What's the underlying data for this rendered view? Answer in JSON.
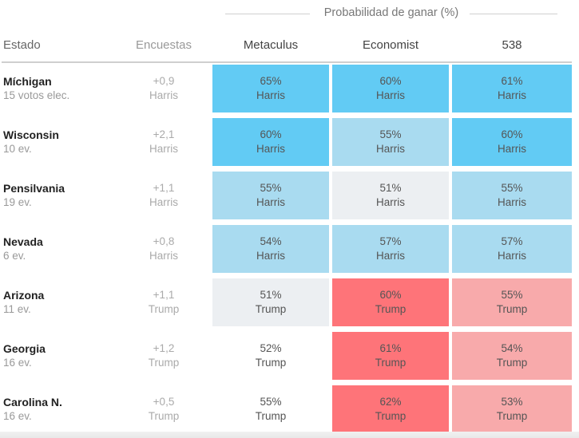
{
  "chart_data": {
    "type": "table",
    "title": "Probabilidad de ganar (%)",
    "columns": [
      "Estado",
      "Encuestas",
      "Metaculus",
      "Economist",
      "538"
    ],
    "sources": [
      "Metaculus",
      "Economist",
      "538"
    ],
    "rows": [
      {
        "state": "Míchigan",
        "ev": "15 votos elec.",
        "poll": "+0,9",
        "poll_leader": "Harris",
        "cells": [
          {
            "pct": 65,
            "label": "65%",
            "leader": "Harris"
          },
          {
            "pct": 60,
            "label": "60%",
            "leader": "Harris"
          },
          {
            "pct": 61,
            "label": "61%",
            "leader": "Harris"
          }
        ]
      },
      {
        "state": "Wisconsin",
        "ev": "10 ev.",
        "poll": "+2,1",
        "poll_leader": "Harris",
        "cells": [
          {
            "pct": 60,
            "label": "60%",
            "leader": "Harris"
          },
          {
            "pct": 55,
            "label": "55%",
            "leader": "Harris"
          },
          {
            "pct": 60,
            "label": "60%",
            "leader": "Harris"
          }
        ]
      },
      {
        "state": "Pensilvania",
        "ev": "19 ev.",
        "poll": "+1,1",
        "poll_leader": "Harris",
        "cells": [
          {
            "pct": 55,
            "label": "55%",
            "leader": "Harris"
          },
          {
            "pct": 51,
            "label": "51%",
            "leader": "Harris"
          },
          {
            "pct": 55,
            "label": "55%",
            "leader": "Harris"
          }
        ]
      },
      {
        "state": "Nevada",
        "ev": "6 ev.",
        "poll": "+0,8",
        "poll_leader": "Harris",
        "cells": [
          {
            "pct": 54,
            "label": "54%",
            "leader": "Harris"
          },
          {
            "pct": 57,
            "label": "57%",
            "leader": "Harris"
          },
          {
            "pct": 57,
            "label": "57%",
            "leader": "Harris"
          }
        ]
      },
      {
        "state": "Arizona",
        "ev": "11 ev.",
        "poll": "+1,1",
        "poll_leader": "Trump",
        "cells": [
          {
            "pct": 51,
            "label": "51%",
            "leader": "Trump"
          },
          {
            "pct": 60,
            "label": "60%",
            "leader": "Trump"
          },
          {
            "pct": 55,
            "label": "55%",
            "leader": "Trump"
          }
        ]
      },
      {
        "state": "Georgia",
        "ev": "16 ev.",
        "poll": "+1,2",
        "poll_leader": "Trump",
        "cells": [
          {
            "pct": 52,
            "label": "52%",
            "leader": "Trump"
          },
          {
            "pct": 61,
            "label": "61%",
            "leader": "Trump"
          },
          {
            "pct": 54,
            "label": "54%",
            "leader": "Trump"
          }
        ]
      },
      {
        "state": "Carolina N.",
        "ev": "16 ev.",
        "poll": "+0,5",
        "poll_leader": "Trump",
        "cells": [
          {
            "pct": 55,
            "label": "55%",
            "leader": "Trump"
          },
          {
            "pct": 62,
            "label": "62%",
            "leader": "Trump"
          },
          {
            "pct": 53,
            "label": "53%",
            "leader": "Trump"
          }
        ]
      }
    ],
    "cell_fills": [
      [
        "#62cbf4",
        "#62cbf4",
        "#62cbf4"
      ],
      [
        "#62cbf4",
        "#a9dbf0",
        "#62cbf4"
      ],
      [
        "#a9dbf0",
        "#eceff2",
        "#a9dbf0"
      ],
      [
        "#a9dbf0",
        "#a9dbf0",
        "#a9dbf0"
      ],
      [
        "#eceff2",
        "#fe7479",
        "#f8aaab"
      ],
      [
        "#ffffff",
        "#fe7479",
        "#f8aaab"
      ],
      [
        "#ffffff",
        "#fe7479",
        "#f8aaab"
      ]
    ]
  }
}
